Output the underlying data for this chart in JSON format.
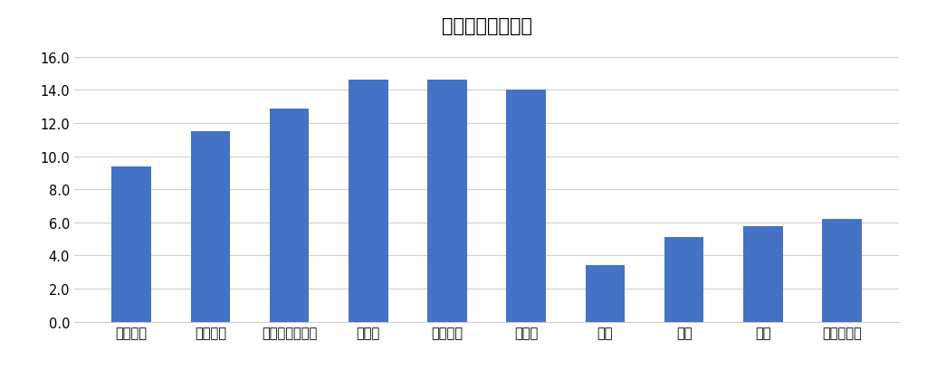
{
  "title": "》平均滞在日数《",
  "title_text": "【平均滞在日数】",
  "categories": [
    "アメリカ",
    "イギリス",
    "オーストラリア",
    "カナダ",
    "フランス",
    "ドイツ",
    "韓国",
    "台湾",
    "中国",
    "全国籍平均"
  ],
  "values": [
    9.4,
    11.5,
    12.9,
    14.6,
    14.6,
    14.0,
    3.4,
    5.1,
    5.8,
    6.2
  ],
  "bar_color": "#4472C4",
  "ylim": [
    0,
    16.8
  ],
  "yticks": [
    0.0,
    2.0,
    4.0,
    6.0,
    8.0,
    10.0,
    12.0,
    14.0,
    16.0
  ],
  "background_color": "#ffffff",
  "title_fontsize": 15,
  "tick_fontsize": 10.5,
  "grid_color": "#d0d0d0",
  "bar_width": 0.5
}
